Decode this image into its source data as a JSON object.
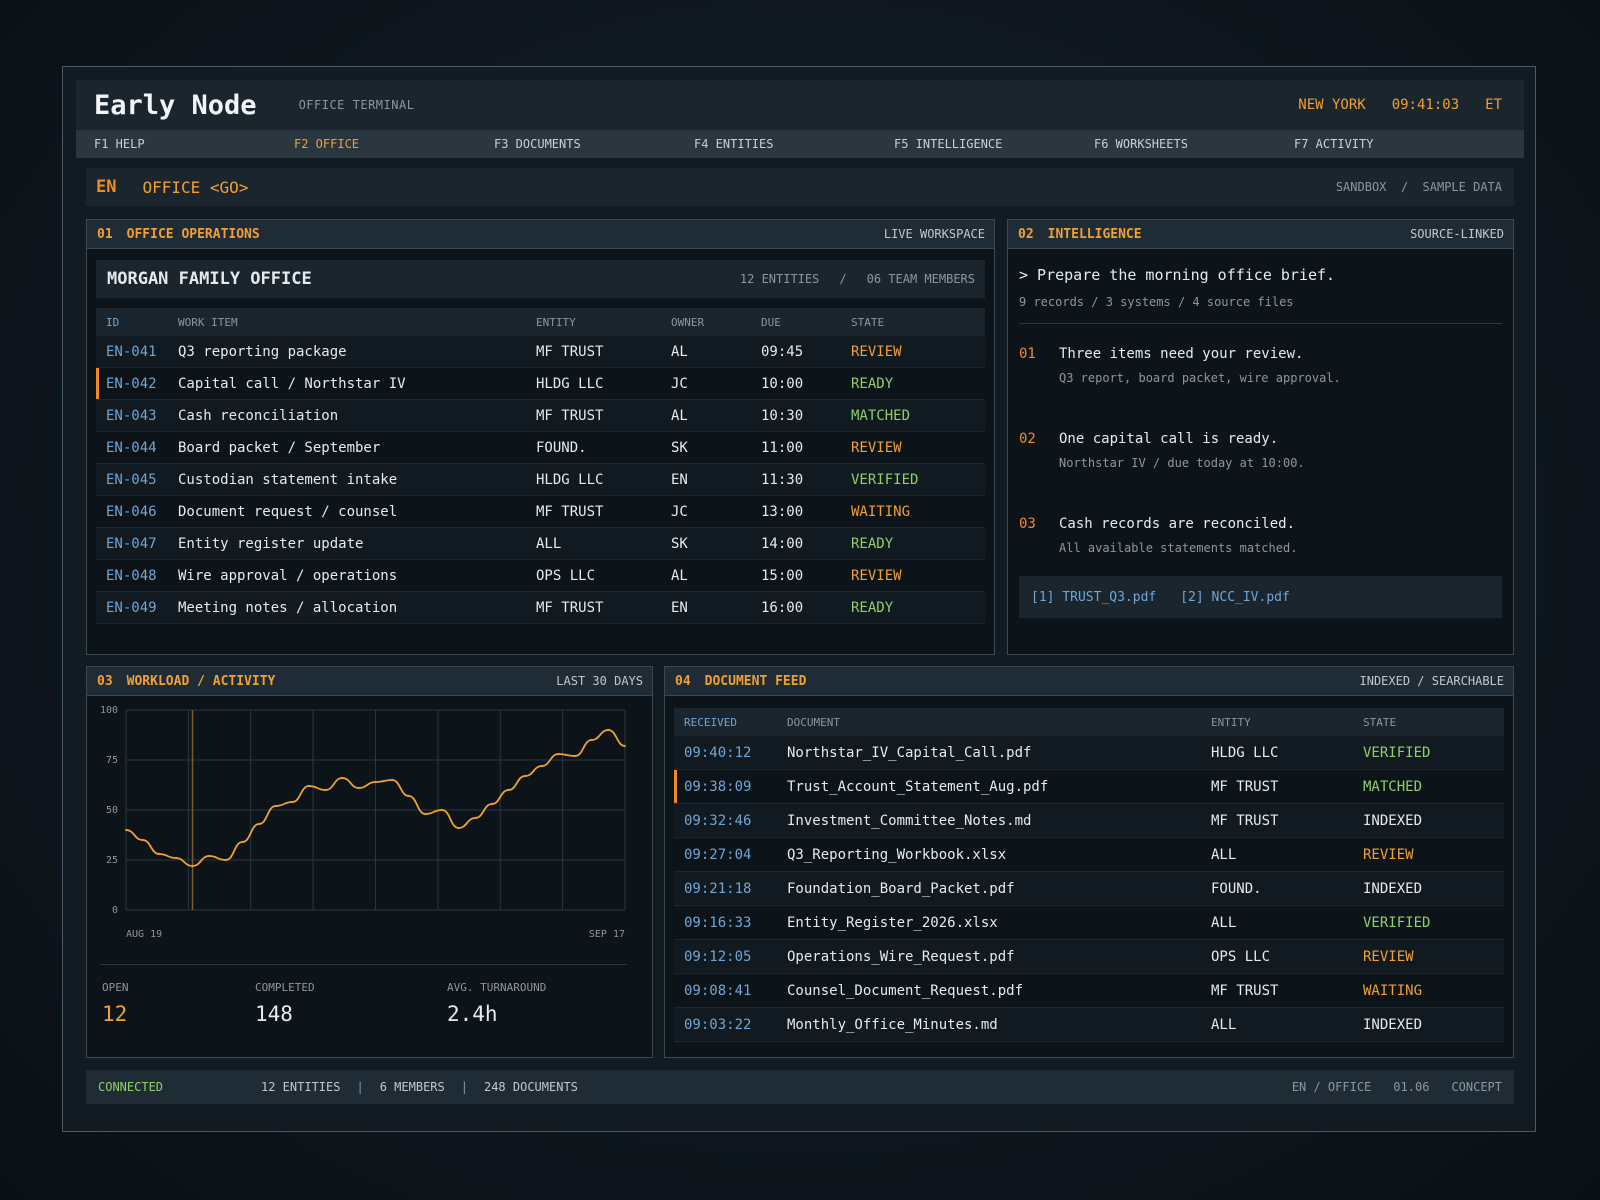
{
  "header": {
    "brand": "Early Node",
    "subtitle": "OFFICE TERMINAL",
    "city": "NEW YORK",
    "time": "09:41:03",
    "tz": "ET"
  },
  "menu": [
    "F1 HELP",
    "F2 OFFICE",
    "F3 DOCUMENTS",
    "F4 ENTITIES",
    "F5 INTELLIGENCE",
    "F6 WORKSHEETS",
    "F7 ACTIVITY"
  ],
  "command": {
    "code": "EN",
    "text": "OFFICE <GO>",
    "mode": "SANDBOX  /  SAMPLE DATA"
  },
  "ops": {
    "num": "01",
    "title": "OFFICE OPERATIONS",
    "tag": "LIVE WORKSPACE",
    "family": "MORGAN FAMILY OFFICE",
    "entities": "12 ENTITIES",
    "sep": "/",
    "members": "06 TEAM MEMBERS",
    "columns": [
      "ID",
      "WORK ITEM",
      "ENTITY",
      "OWNER",
      "DUE",
      "STATE"
    ],
    "rows": [
      {
        "id": "EN-041",
        "item": "Q3 reporting package",
        "entity": "MF TRUST",
        "owner": "AL",
        "due": "09:45",
        "state": "REVIEW"
      },
      {
        "id": "EN-042",
        "item": "Capital call / Northstar IV",
        "entity": "HLDG LLC",
        "owner": "JC",
        "due": "10:00",
        "state": "READY"
      },
      {
        "id": "EN-043",
        "item": "Cash reconciliation",
        "entity": "MF TRUST",
        "owner": "AL",
        "due": "10:30",
        "state": "MATCHED"
      },
      {
        "id": "EN-044",
        "item": "Board packet / September",
        "entity": "FOUND.",
        "owner": "SK",
        "due": "11:00",
        "state": "REVIEW"
      },
      {
        "id": "EN-045",
        "item": "Custodian statement intake",
        "entity": "HLDG LLC",
        "owner": "EN",
        "due": "11:30",
        "state": "VERIFIED"
      },
      {
        "id": "EN-046",
        "item": "Document request / counsel",
        "entity": "MF TRUST",
        "owner": "JC",
        "due": "13:00",
        "state": "WAITING"
      },
      {
        "id": "EN-047",
        "item": "Entity register update",
        "entity": "ALL",
        "owner": "SK",
        "due": "14:00",
        "state": "READY"
      },
      {
        "id": "EN-048",
        "item": "Wire approval / operations",
        "entity": "OPS LLC",
        "owner": "AL",
        "due": "15:00",
        "state": "REVIEW"
      },
      {
        "id": "EN-049",
        "item": "Meeting notes / allocation",
        "entity": "MF TRUST",
        "owner": "EN",
        "due": "16:00",
        "state": "READY"
      }
    ]
  },
  "intel": {
    "num": "02",
    "title": "INTELLIGENCE",
    "tag": "SOURCE-LINKED",
    "prompt": "> Prepare the morning office brief.",
    "meta": "9 records / 3 systems / 4 source files",
    "insights": [
      {
        "num": "01",
        "title": "Three items need your review.",
        "sub": "Q3 report, board packet, wire approval."
      },
      {
        "num": "02",
        "title": "One capital call is ready.",
        "sub": "Northstar IV / due today at 10:00."
      },
      {
        "num": "03",
        "title": "Cash records are reconciled.",
        "sub": "All available statements matched."
      }
    ],
    "sources": [
      "[1] TRUST_Q3.pdf",
      "[2] NCC_IV.pdf"
    ]
  },
  "workload": {
    "num": "03",
    "title": "WORKLOAD / ACTIVITY",
    "tag": "LAST 30 DAYS",
    "stats": [
      {
        "label": "OPEN",
        "value": "12"
      },
      {
        "label": "COMPLETED",
        "value": "148"
      },
      {
        "label": "AVG. TURNAROUND",
        "value": "2.4h"
      }
    ]
  },
  "chart_data": {
    "type": "line",
    "x_start_label": "AUG 19",
    "x_end_label": "SEP 17",
    "yticks": [
      "0",
      "25",
      "50",
      "75",
      "100"
    ],
    "ylim": [
      0,
      100
    ],
    "grid": true,
    "marker_x": 4,
    "values": [
      40,
      35,
      28,
      26,
      22,
      27,
      25,
      34,
      43,
      52,
      54,
      62,
      60,
      66,
      61,
      64,
      65,
      57,
      48,
      50,
      41,
      46,
      53,
      60,
      67,
      72,
      78,
      77,
      85,
      90,
      82
    ],
    "line_color": "#f0a035"
  },
  "docs": {
    "num": "04",
    "title": "DOCUMENT FEED",
    "tag": "INDEXED / SEARCHABLE",
    "columns": [
      "RECEIVED",
      "DOCUMENT",
      "ENTITY",
      "STATE"
    ],
    "rows": [
      {
        "time": "09:40:12",
        "doc": "Northstar_IV_Capital_Call.pdf",
        "entity": "HLDG LLC",
        "state": "VERIFIED"
      },
      {
        "time": "09:38:09",
        "doc": "Trust_Account_Statement_Aug.pdf",
        "entity": "MF TRUST",
        "state": "MATCHED"
      },
      {
        "time": "09:32:46",
        "doc": "Investment_Committee_Notes.md",
        "entity": "MF TRUST",
        "state": "INDEXED"
      },
      {
        "time": "09:27:04",
        "doc": "Q3_Reporting_Workbook.xlsx",
        "entity": "ALL",
        "state": "REVIEW"
      },
      {
        "time": "09:21:18",
        "doc": "Foundation_Board_Packet.pdf",
        "entity": "FOUND.",
        "state": "INDEXED"
      },
      {
        "time": "09:16:33",
        "doc": "Entity_Register_2026.xlsx",
        "entity": "ALL",
        "state": "VERIFIED"
      },
      {
        "time": "09:12:05",
        "doc": "Operations_Wire_Request.pdf",
        "entity": "OPS LLC",
        "state": "REVIEW"
      },
      {
        "time": "09:08:41",
        "doc": "Counsel_Document_Request.pdf",
        "entity": "MF TRUST",
        "state": "WAITING"
      },
      {
        "time": "09:03:22",
        "doc": "Monthly_Office_Minutes.md",
        "entity": "ALL",
        "state": "INDEXED"
      }
    ]
  },
  "status": {
    "connection": "CONNECTED",
    "entities": "12 ENTITIES",
    "members": "6 MEMBERS",
    "documents": "248 DOCUMENTS",
    "sep": "|",
    "path": "EN / OFFICE",
    "version": "01.06",
    "label": "CONCEPT"
  }
}
